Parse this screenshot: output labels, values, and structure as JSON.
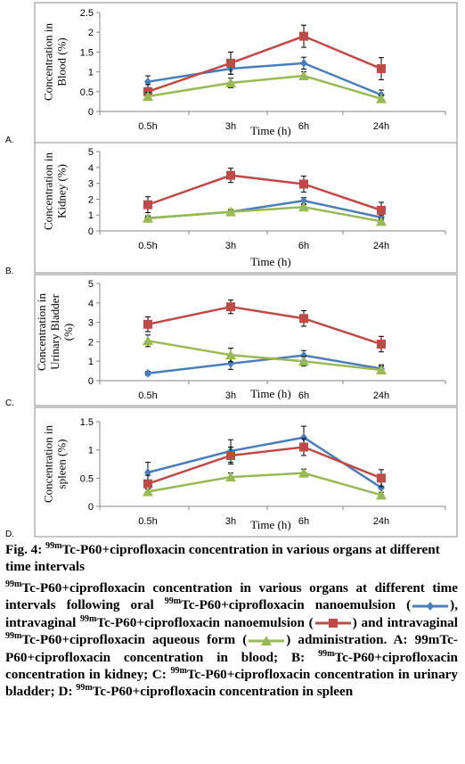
{
  "chart_data": [
    {
      "type": "line",
      "panel_label": "A.",
      "ylabel": "Concentration in Blood (%)",
      "xlabel": "Time (h)",
      "categories": [
        "0.5h",
        "3h",
        "6h",
        "24h"
      ],
      "ylim": [
        0,
        2.5
      ],
      "yticks": [
        "0",
        "0.5",
        "1",
        "1.5",
        "2",
        "2.5"
      ],
      "series": [
        {
          "key": "nanoemulsion_oral",
          "color": "#4a7ebb",
          "marker": "diamond",
          "values": [
            0.75,
            1.08,
            1.22,
            0.42
          ],
          "errors": [
            0.15,
            0.14,
            0.15,
            0.12
          ]
        },
        {
          "key": "nanoemulsion_intravaginal",
          "color": "#be4b48",
          "marker": "square",
          "values": [
            0.5,
            1.22,
            1.9,
            1.08
          ],
          "errors": [
            0.18,
            0.28,
            0.28,
            0.28
          ]
        },
        {
          "key": "aqueous_intravaginal",
          "color": "#98b954",
          "marker": "triangle",
          "values": [
            0.38,
            0.72,
            0.9,
            0.32
          ],
          "errors": [
            0.1,
            0.12,
            0.1,
            0.08
          ]
        }
      ]
    },
    {
      "type": "line",
      "panel_label": "B.",
      "ylabel": "Concentration in Kidney (%)",
      "xlabel": "Time (h)",
      "categories": [
        "0.5h",
        "3h",
        "6h",
        "24h"
      ],
      "ylim": [
        0,
        5
      ],
      "yticks": [
        "0",
        "1",
        "2",
        "3",
        "4",
        "5"
      ],
      "series": [
        {
          "key": "nanoemulsion_oral",
          "color": "#4a7ebb",
          "marker": "diamond",
          "values": [
            0.8,
            1.2,
            1.9,
            0.85
          ],
          "errors": [
            0.15,
            0.15,
            0.2,
            0.15
          ]
        },
        {
          "key": "nanoemulsion_intravaginal",
          "color": "#be4b48",
          "marker": "square",
          "values": [
            1.65,
            3.5,
            2.95,
            1.3
          ],
          "errors": [
            0.5,
            0.45,
            0.5,
            0.5
          ]
        },
        {
          "key": "aqueous_intravaginal",
          "color": "#98b954",
          "marker": "triangle",
          "values": [
            0.8,
            1.2,
            1.5,
            0.6
          ],
          "errors": [
            0.1,
            0.15,
            0.15,
            0.1
          ]
        }
      ]
    },
    {
      "type": "line",
      "panel_label": "C.",
      "ylabel": "Concentration in Urinary Bladder (%)",
      "xlabel": "Time (h)",
      "categories": [
        "0.5h",
        "3h",
        "6h",
        "24h"
      ],
      "ylim": [
        0,
        5
      ],
      "yticks": [
        "0",
        "1",
        "2",
        "3",
        "4",
        "5"
      ],
      "series": [
        {
          "key": "nanoemulsion_oral",
          "color": "#4a7ebb",
          "marker": "diamond",
          "values": [
            0.38,
            0.88,
            1.3,
            0.62
          ],
          "errors": [
            0.1,
            0.3,
            0.25,
            0.2
          ]
        },
        {
          "key": "nanoemulsion_intravaginal",
          "color": "#be4b48",
          "marker": "square",
          "values": [
            2.9,
            3.8,
            3.2,
            1.88
          ],
          "errors": [
            0.38,
            0.35,
            0.4,
            0.4
          ]
        },
        {
          "key": "aqueous_intravaginal",
          "color": "#98b954",
          "marker": "triangle",
          "values": [
            2.05,
            1.32,
            1.0,
            0.55
          ],
          "errors": [
            0.3,
            0.35,
            0.25,
            0.2
          ]
        }
      ]
    },
    {
      "type": "line",
      "panel_label": "D.",
      "ylabel": "Concentration in spleen (%)",
      "xlabel": "Time (h)",
      "categories": [
        "0.5h",
        "3h",
        "6h",
        "24h"
      ],
      "ylim": [
        0,
        1.5
      ],
      "yticks": [
        "0",
        "0.5",
        "1",
        "1.5"
      ],
      "series": [
        {
          "key": "nanoemulsion_oral",
          "color": "#4a7ebb",
          "marker": "diamond",
          "values": [
            0.6,
            0.98,
            1.22,
            0.33
          ],
          "errors": [
            0.18,
            0.2,
            0.2,
            0.12
          ]
        },
        {
          "key": "nanoemulsion_intravaginal",
          "color": "#be4b48",
          "marker": "square",
          "values": [
            0.4,
            0.9,
            1.05,
            0.5
          ],
          "errors": [
            0.15,
            0.15,
            0.15,
            0.15
          ]
        },
        {
          "key": "aqueous_intravaginal",
          "color": "#98b954",
          "marker": "triangle",
          "values": [
            0.26,
            0.52,
            0.59,
            0.2
          ],
          "errors": [
            0.05,
            0.07,
            0.07,
            0.05
          ]
        }
      ]
    }
  ],
  "caption": {
    "title_sup": "99m",
    "title_rest": "Tc-P60+ciprofloxacin concentration in various organs at different time intervals",
    "title_prefix": "Fig. 4: ",
    "sup": "99m",
    "p1": "Tc-P60+ciprofloxacin concentration in various organs at different time intervals following oral ",
    "p2": "Tc-P60+ciprofloxacin nanoemulsion (",
    "p3": "), intravaginal ",
    "p4": "Tc-P60+ciprofloxacin nanoemulsion (",
    "p5": ") and intravaginal ",
    "p6": "Tc-P60+ciprofloxacin aqueous form (",
    "p7": ") administration. A: 99mTc-P60+ciprofloxacin concentration in blood; B: ",
    "p8": "Tc-P60+ciprofloxacin concentration in kidney; C: ",
    "p9": "Tc-P60+ciprofloxacin concentration in urinary bladder; D: ",
    "p10": "Tc-P60+ciprofloxacin concentration in spleen"
  }
}
